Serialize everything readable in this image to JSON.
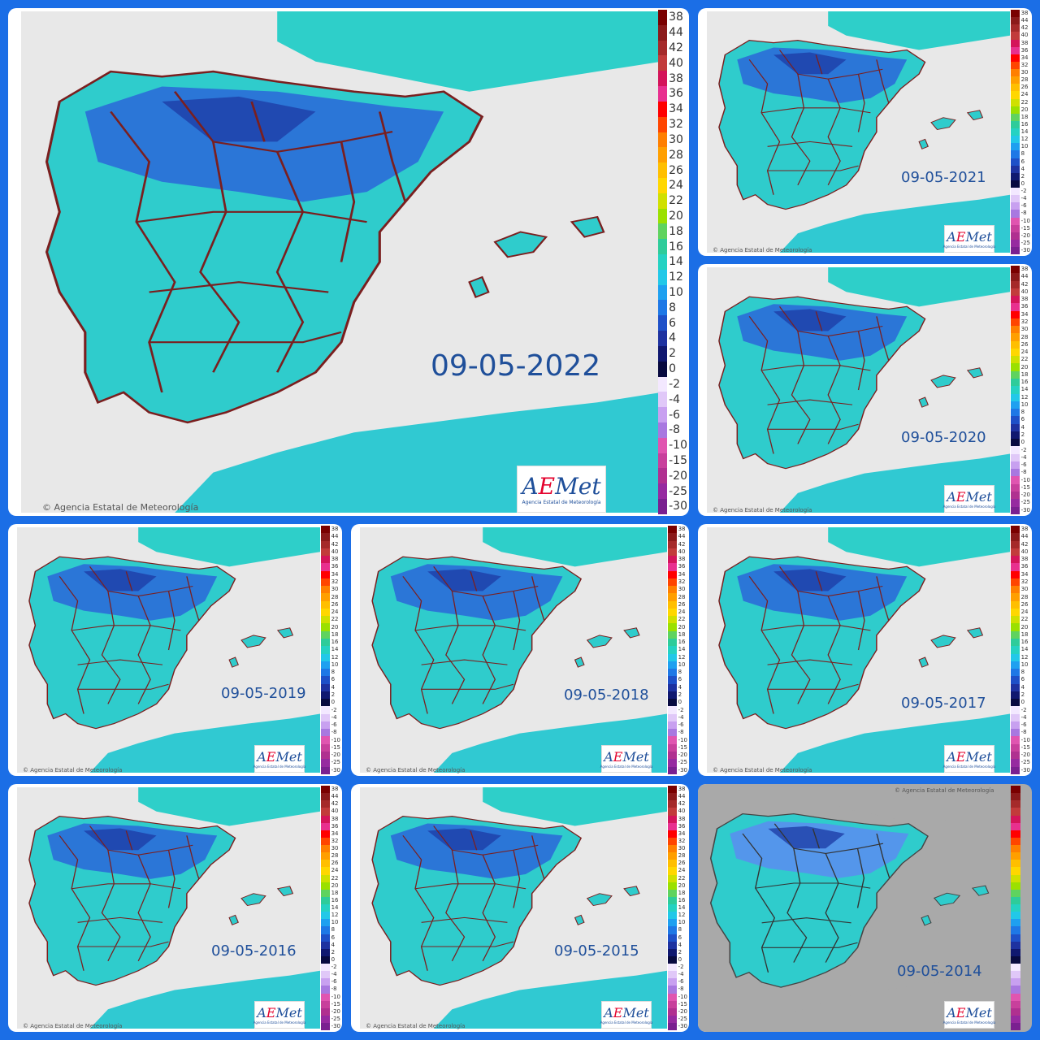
{
  "copyright": "Agencia Estatal de Meteorología",
  "logo": {
    "pre": "A",
    "accent": "E",
    "post": "Met",
    "subtitle": "Agencia Estatal de Meteorología"
  },
  "legend_values": [
    "38",
    "44",
    "42",
    "40",
    "38",
    "36",
    "34",
    "32",
    "30",
    "28",
    "26",
    "24",
    "22",
    "20",
    "18",
    "16",
    "14",
    "12",
    "10",
    "8",
    "6",
    "4",
    "2",
    "0",
    "-2",
    "-4",
    "-6",
    "-8",
    "-10",
    "-15",
    "-20",
    "-25",
    "-30"
  ],
  "legend_colors": [
    "#7a0000",
    "#8b1a1a",
    "#a52a2a",
    "#c23b3b",
    "#d4145a",
    "#e8308f",
    "#ff0000",
    "#ff4500",
    "#ff7f00",
    "#ff9f00",
    "#ffbf00",
    "#ffd700",
    "#d0e000",
    "#9be000",
    "#5fd35f",
    "#2ecc9a",
    "#25d2c2",
    "#22c8e8",
    "#1ea0f0",
    "#1e78e6",
    "#1e50c8",
    "#1e32a0",
    "#101870",
    "#080a40",
    "#f3e8ff",
    "#e0c8f8",
    "#c8a0f0",
    "#a878e0",
    "#e055b0",
    "#c8409c",
    "#b03090",
    "#962aa0",
    "#7a2090"
  ],
  "panels": [
    {
      "date": "09-05-2022"
    },
    {
      "date": "09-05-2021"
    },
    {
      "date": "09-05-2020"
    },
    {
      "date": "09-05-2019"
    },
    {
      "date": "09-05-2018"
    },
    {
      "date": "09-05-2017"
    },
    {
      "date": "09-05-2016"
    },
    {
      "date": "09-05-2015"
    },
    {
      "date": "09-05-2014"
    }
  ]
}
